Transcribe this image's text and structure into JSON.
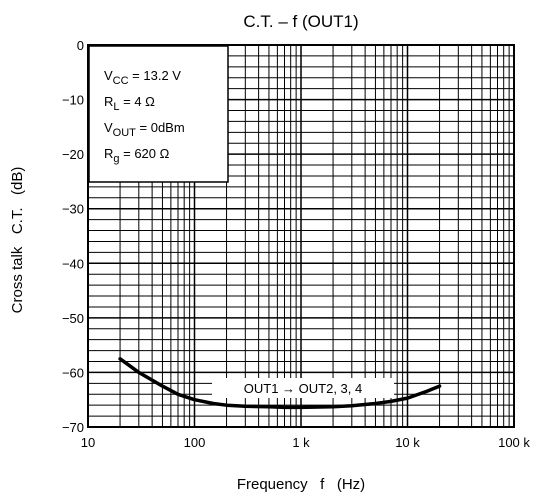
{
  "chart_data": {
    "type": "line",
    "title": "C.T. – f (OUT1)",
    "xlabel": "Frequency   f   (Hz)",
    "ylabel": "Cross talk   C.T.   (dB)",
    "x_scale": "log",
    "xlim": [
      10,
      100000
    ],
    "ylim": [
      -70,
      0
    ],
    "grid": true,
    "x_ticks": [
      {
        "value": 10,
        "label": "10"
      },
      {
        "value": 100,
        "label": "100"
      },
      {
        "value": 1000,
        "label": "1 k"
      },
      {
        "value": 10000,
        "label": "10 k"
      },
      {
        "value": 100000,
        "label": "100 k"
      }
    ],
    "y_ticks": [
      {
        "value": 0,
        "label": "0"
      },
      {
        "value": -10,
        "label": "−10"
      },
      {
        "value": -20,
        "label": "−20"
      },
      {
        "value": -30,
        "label": "−30"
      },
      {
        "value": -40,
        "label": "−40"
      },
      {
        "value": -50,
        "label": "−50"
      },
      {
        "value": -60,
        "label": "−60"
      },
      {
        "value": -70,
        "label": "−70"
      }
    ],
    "conditions": [
      {
        "main": "V",
        "sub": "CC",
        "rest": " = 13.2 V"
      },
      {
        "main": "R",
        "sub": "L",
        "rest": " = 4 Ω"
      },
      {
        "main": "V",
        "sub": "OUT",
        "rest": " = 0dBm"
      },
      {
        "main": "R",
        "sub": "g",
        "rest": " = 620 Ω"
      }
    ],
    "series": [
      {
        "name": "OUT1 → OUT2, 3, 4",
        "x": [
          20,
          30,
          50,
          70,
          100,
          150,
          200,
          300,
          500,
          700,
          1000,
          2000,
          3000,
          5000,
          7000,
          10000,
          15000,
          20000
        ],
        "y": [
          -57.5,
          -60,
          -62.5,
          -64,
          -65,
          -65.7,
          -66,
          -66.2,
          -66.3,
          -66.4,
          -66.4,
          -66.3,
          -66.1,
          -65.7,
          -65.3,
          -64.7,
          -63.5,
          -62.5
        ]
      }
    ]
  }
}
